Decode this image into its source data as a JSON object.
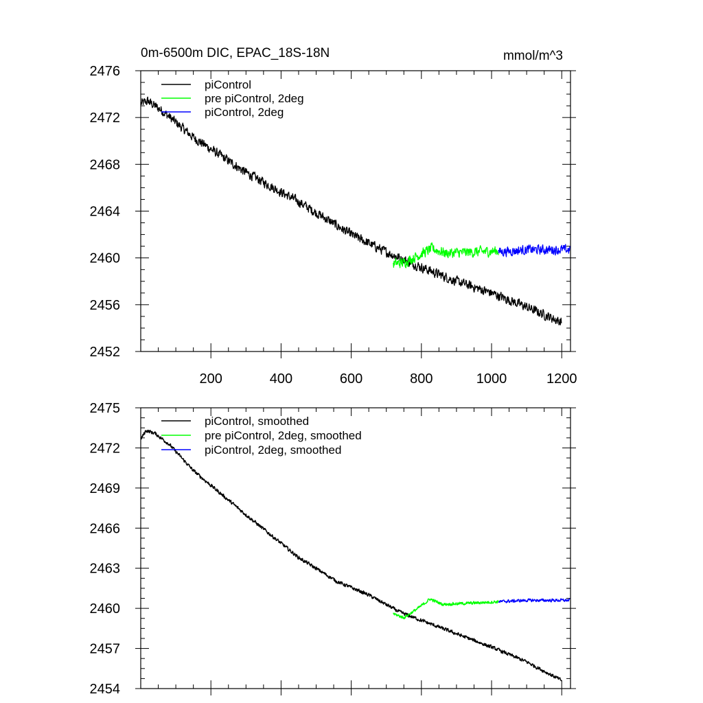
{
  "chart_data": [
    {
      "type": "line",
      "title": "0m-6500m DIC, EPAC_18S-18N",
      "units": "mmol/m^3",
      "xlim": [
        0,
        1225
      ],
      "ylim": [
        2452,
        2476
      ],
      "xticks": [
        200,
        400,
        600,
        800,
        1000,
        1200
      ],
      "xtick_labels": [
        "200",
        "400",
        "600",
        "800",
        "1000",
        "1200"
      ],
      "yticks": [
        2452,
        2456,
        2460,
        2464,
        2468,
        2472,
        2476
      ],
      "ytick_labels": [
        "2452",
        "2456",
        "2460",
        "2464",
        "2468",
        "2472",
        "2476"
      ],
      "legend_position": "top-left",
      "series": [
        {
          "name": "piControl",
          "color": "#000000",
          "x_range": [
            1,
            1200
          ],
          "noise": 0.55,
          "anchors": [
            [
              1,
              2473.2
            ],
            [
              20,
              2473.4
            ],
            [
              60,
              2472.6
            ],
            [
              150,
              2470.3
            ],
            [
              300,
              2467.3
            ],
            [
              450,
              2464.8
            ],
            [
              600,
              2462.0
            ],
            [
              700,
              2460.5
            ],
            [
              800,
              2459.2
            ],
            [
              900,
              2458.0
            ],
            [
              1000,
              2457.0
            ],
            [
              1100,
              2455.8
            ],
            [
              1200,
              2454.5
            ]
          ]
        },
        {
          "name": "pre piControl, 2deg",
          "color": "#00ff00",
          "x_range": [
            720,
            1020
          ],
          "noise": 0.6,
          "anchors": [
            [
              720,
              2459.5
            ],
            [
              750,
              2459.6
            ],
            [
              790,
              2460.2
            ],
            [
              830,
              2460.8
            ],
            [
              870,
              2460.4
            ],
            [
              950,
              2460.5
            ],
            [
              1020,
              2460.6
            ]
          ]
        },
        {
          "name": "piControl, 2deg",
          "color": "#0000ff",
          "x_range": [
            1020,
            1223
          ],
          "noise": 0.55,
          "anchors": [
            [
              1020,
              2460.5
            ],
            [
              1100,
              2460.7
            ],
            [
              1223,
              2460.7
            ]
          ]
        }
      ]
    },
    {
      "type": "line",
      "xlim": [
        0,
        1225
      ],
      "ylim": [
        2454,
        2475
      ],
      "xticks": [
        200,
        400,
        600,
        800,
        1000,
        1200
      ],
      "yticks": [
        2454,
        2457,
        2460,
        2463,
        2466,
        2469,
        2472,
        2475
      ],
      "ytick_labels": [
        "2454",
        "2457",
        "2460",
        "2463",
        "2466",
        "2469",
        "2472",
        "2475"
      ],
      "legend_position": "top-left",
      "series": [
        {
          "name": "piControl, smoothed",
          "color": "#000000",
          "x_range": [
            1,
            1200
          ],
          "noise": 0.18,
          "anchors": [
            [
              1,
              2472.7
            ],
            [
              15,
              2473.3
            ],
            [
              40,
              2473.1
            ],
            [
              80,
              2472.3
            ],
            [
              150,
              2470.3
            ],
            [
              300,
              2467.0
            ],
            [
              450,
              2463.8
            ],
            [
              560,
              2462.0
            ],
            [
              650,
              2461.0
            ],
            [
              740,
              2459.7
            ],
            [
              850,
              2458.6
            ],
            [
              1000,
              2457.1
            ],
            [
              1100,
              2456.0
            ],
            [
              1200,
              2454.6
            ]
          ]
        },
        {
          "name": "pre piControl, 2deg, smoothed",
          "color": "#00ff00",
          "x_range": [
            720,
            1020
          ],
          "noise": 0.15,
          "anchors": [
            [
              720,
              2459.6
            ],
            [
              750,
              2459.3
            ],
            [
              790,
              2460.0
            ],
            [
              825,
              2460.7
            ],
            [
              860,
              2460.3
            ],
            [
              950,
              2460.4
            ],
            [
              1020,
              2460.5
            ]
          ]
        },
        {
          "name": "piControl, 2deg, smoothed",
          "color": "#0000ff",
          "x_range": [
            1020,
            1223
          ],
          "noise": 0.15,
          "anchors": [
            [
              1020,
              2460.5
            ],
            [
              1100,
              2460.6
            ],
            [
              1223,
              2460.6
            ]
          ]
        }
      ]
    }
  ]
}
